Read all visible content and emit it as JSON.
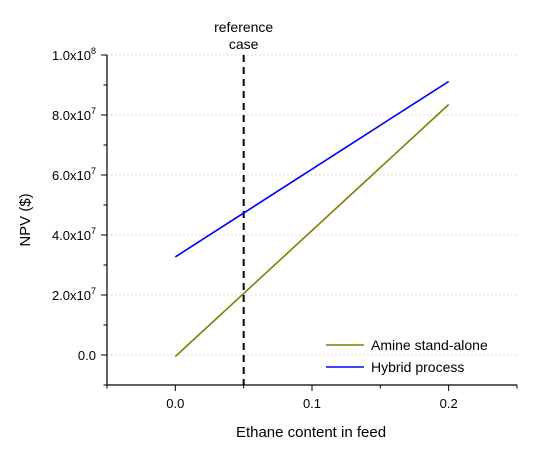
{
  "chart_data": {
    "type": "line",
    "xlabel": "Ethane content in feed",
    "ylabel": "NPV ($)",
    "xlim": [
      -0.05,
      0.25
    ],
    "ylim": [
      -10000000,
      100000000
    ],
    "x_ticks": [
      0.0,
      0.1,
      0.2
    ],
    "x_tick_labels": [
      "0.0",
      "0.1",
      "0.2"
    ],
    "y_ticks": [
      0,
      20000000,
      40000000,
      60000000,
      80000000,
      100000000
    ],
    "y_tick_labels": [
      {
        "base": "0.0",
        "exp": ""
      },
      {
        "base": "2.0x10",
        "exp": "7"
      },
      {
        "base": "4.0x10",
        "exp": "7"
      },
      {
        "base": "6.0x10",
        "exp": "7"
      },
      {
        "base": "8.0x10",
        "exp": "7"
      },
      {
        "base": "1.0x10",
        "exp": "8"
      }
    ],
    "grid": "horizontal dotted",
    "legend_position": "bottom-right",
    "series": [
      {
        "name": "Amine stand-alone",
        "color": "#808000",
        "x": [
          0.0,
          0.2
        ],
        "y": [
          -500000,
          83500000
        ]
      },
      {
        "name": "Hybrid process",
        "color": "#0000ff",
        "x": [
          0.0,
          0.2
        ],
        "y": [
          32700000,
          91200000
        ]
      }
    ],
    "reference_line": {
      "x": 0.05,
      "label_lines": [
        "reference",
        "case"
      ],
      "style": "dashed",
      "color": "#000000"
    }
  }
}
